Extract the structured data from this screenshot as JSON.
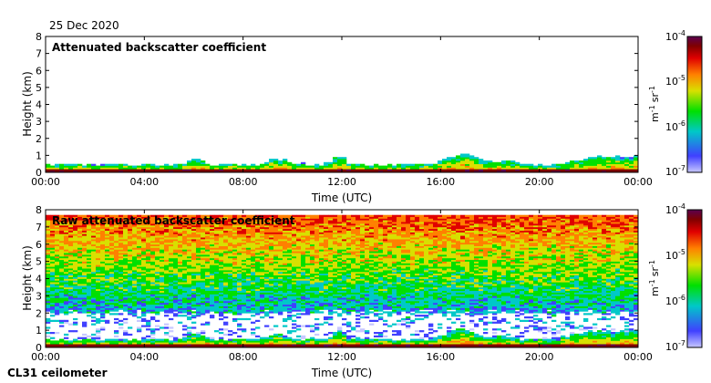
{
  "date": "25 Dec 2020",
  "footer": "CL31 ceilometer",
  "colorscale": [
    "#c8c8ff",
    "#4040ff",
    "#00c8c8",
    "#00e000",
    "#d8e000",
    "#ff8000",
    "#e00000",
    "#800000",
    "#5a0050"
  ],
  "chart_data": [
    {
      "type": "heatmap",
      "title": "Attenuated backscatter coefficient",
      "xlabel": "Time (UTC)",
      "ylabel": "Height (km)",
      "xlim": [
        0,
        24
      ],
      "ylim": [
        0,
        8
      ],
      "x_ticks": [
        "00:00",
        "04:00",
        "08:00",
        "12:00",
        "16:00",
        "20:00",
        "00:00"
      ],
      "y_ticks": [
        0,
        1,
        2,
        3,
        4,
        5,
        6,
        7,
        8
      ],
      "colorbar": {
        "label_base": "m",
        "label_exp1": "-1",
        "label_unit2": "sr",
        "label_exp2": "-1",
        "scale": "log",
        "ticks": [
          {
            "base": "10",
            "exp": "-4"
          },
          {
            "base": "10",
            "exp": "-5"
          },
          {
            "base": "10",
            "exp": "-6"
          },
          {
            "base": "10",
            "exp": "-7"
          }
        ]
      }
    },
    {
      "type": "heatmap",
      "title": "Raw attenuated backscatter coefficient",
      "xlabel": "Time (UTC)",
      "ylabel": "Height (km)",
      "xlim": [
        0,
        24
      ],
      "ylim": [
        0,
        8
      ],
      "x_ticks": [
        "00:00",
        "04:00",
        "08:00",
        "12:00",
        "16:00",
        "20:00",
        "00:00"
      ],
      "y_ticks": [
        0,
        1,
        2,
        3,
        4,
        5,
        6,
        7,
        8
      ],
      "colorbar": {
        "label_base": "m",
        "label_exp1": "-1",
        "label_unit2": "sr",
        "label_exp2": "-1",
        "scale": "log",
        "ticks": [
          {
            "base": "10",
            "exp": "-4"
          },
          {
            "base": "10",
            "exp": "-5"
          },
          {
            "base": "10",
            "exp": "-6"
          },
          {
            "base": "10",
            "exp": "-7"
          }
        ]
      }
    }
  ]
}
